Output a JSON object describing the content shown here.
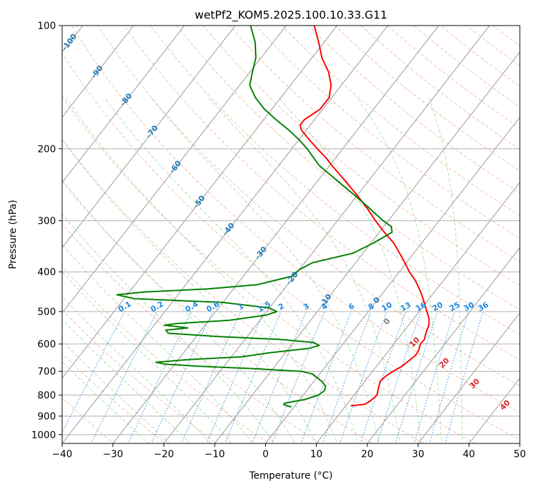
{
  "chart_data": {
    "type": "line",
    "title": "wetPf2_KOM5.2025.100.10.33.G11",
    "xlabel": "Temperature (°C)",
    "ylabel": "Pressure (hPa)",
    "xlim": [
      -40,
      50
    ],
    "ylim": [
      1050,
      100
    ],
    "y_scale": "log",
    "grid": true,
    "x_ticks": [
      -40,
      -30,
      -20,
      -10,
      0,
      10,
      20,
      30,
      40,
      50
    ],
    "x_tick_labels": [
      "−40",
      "−30",
      "−20",
      "−10",
      "0",
      "10",
      "20",
      "30",
      "40",
      "50"
    ],
    "y_ticks": [
      100,
      200,
      300,
      400,
      500,
      600,
      700,
      800,
      900,
      1000
    ],
    "y_tick_labels": [
      "100",
      "200",
      "300",
      "400",
      "500",
      "600",
      "700",
      "800",
      "900",
      "1000"
    ],
    "isotherm_labels": [
      {
        "text": "-100",
        "t": -100
      },
      {
        "text": "-90",
        "t": -90
      },
      {
        "text": "-80",
        "t": -80
      },
      {
        "text": "-70",
        "t": -70
      },
      {
        "text": "-60",
        "t": -60
      },
      {
        "text": "-50",
        "t": -50
      },
      {
        "text": "-40",
        "t": -40
      },
      {
        "text": "-30",
        "t": -30
      },
      {
        "text": "-20",
        "t": -20
      },
      {
        "text": "-10",
        "t": -10
      },
      {
        "text": "0",
        "t": 0
      }
    ],
    "mixing_ratio_labels": [
      "0.1",
      "0.2",
      "0.4",
      "0.6",
      "1",
      "1.5",
      "2",
      "3",
      "4",
      "6",
      "8",
      "10",
      "13",
      "16",
      "20",
      "25",
      "30",
      "36"
    ],
    "dry_adiabat_labels": [
      "10",
      "20",
      "30",
      "40"
    ],
    "moist_adiabat_labels": [
      "0"
    ],
    "series": [
      {
        "name": "",
        "color": "#ff0000",
        "points": [
          {
            "p": 850,
            "t": 11.0
          },
          {
            "p": 842,
            "t": 13.5
          },
          {
            "p": 830,
            "t": 14.0
          },
          {
            "p": 815,
            "t": 14.3
          },
          {
            "p": 800,
            "t": 14.5
          },
          {
            "p": 780,
            "t": 14.0
          },
          {
            "p": 760,
            "t": 13.5
          },
          {
            "p": 740,
            "t": 13.0
          },
          {
            "p": 720,
            "t": 13.3
          },
          {
            "p": 700,
            "t": 14.0
          },
          {
            "p": 680,
            "t": 15.0
          },
          {
            "p": 660,
            "t": 15.5
          },
          {
            "p": 640,
            "t": 16.0
          },
          {
            "p": 620,
            "t": 15.8
          },
          {
            "p": 600,
            "t": 15.2
          },
          {
            "p": 585,
            "t": 15.3
          },
          {
            "p": 570,
            "t": 14.8
          },
          {
            "p": 560,
            "t": 14.5
          },
          {
            "p": 540,
            "t": 14.0
          },
          {
            "p": 520,
            "t": 13.0
          },
          {
            "p": 500,
            "t": 11.5
          },
          {
            "p": 480,
            "t": 10.0
          },
          {
            "p": 450,
            "t": 7.5
          },
          {
            "p": 420,
            "t": 4.5
          },
          {
            "p": 400,
            "t": 2.0
          },
          {
            "p": 370,
            "t": -1.5
          },
          {
            "p": 340,
            "t": -5.5
          },
          {
            "p": 320,
            "t": -9.0
          },
          {
            "p": 300,
            "t": -12.5
          },
          {
            "p": 280,
            "t": -16.0
          },
          {
            "p": 260,
            "t": -20.0
          },
          {
            "p": 240,
            "t": -24.5
          },
          {
            "p": 220,
            "t": -29.5
          },
          {
            "p": 210,
            "t": -32.0
          },
          {
            "p": 200,
            "t": -35.0
          },
          {
            "p": 190,
            "t": -38.0
          },
          {
            "p": 180,
            "t": -41.0
          },
          {
            "p": 175,
            "t": -42.0
          },
          {
            "p": 170,
            "t": -42.0
          },
          {
            "p": 160,
            "t": -40.5
          },
          {
            "p": 150,
            "t": -40.5
          },
          {
            "p": 140,
            "t": -42.0
          },
          {
            "p": 130,
            "t": -44.5
          },
          {
            "p": 120,
            "t": -48.0
          },
          {
            "p": 110,
            "t": -51.0
          },
          {
            "p": 100,
            "t": -54.5
          }
        ]
      },
      {
        "name": "",
        "color": "#008000",
        "points": [
          {
            "p": 855,
            "t": -0.5
          },
          {
            "p": 850,
            "t": -1.5
          },
          {
            "p": 845,
            "t": -2.3
          },
          {
            "p": 838,
            "t": -2.5
          },
          {
            "p": 830,
            "t": -1.0
          },
          {
            "p": 820,
            "t": 1.0
          },
          {
            "p": 800,
            "t": 3.0
          },
          {
            "p": 780,
            "t": 3.5
          },
          {
            "p": 760,
            "t": 3.0
          },
          {
            "p": 740,
            "t": 1.5
          },
          {
            "p": 725,
            "t": 0.0
          },
          {
            "p": 710,
            "t": -1.5
          },
          {
            "p": 700,
            "t": -4.0
          },
          {
            "p": 690,
            "t": -13.0
          },
          {
            "p": 680,
            "t": -25.0
          },
          {
            "p": 672,
            "t": -32.0
          },
          {
            "p": 665,
            "t": -34.0
          },
          {
            "p": 655,
            "t": -28.0
          },
          {
            "p": 645,
            "t": -18.0
          },
          {
            "p": 630,
            "t": -13.0
          },
          {
            "p": 615,
            "t": -6.0
          },
          {
            "p": 605,
            "t": -4.5
          },
          {
            "p": 595,
            "t": -6.0
          },
          {
            "p": 585,
            "t": -13.0
          },
          {
            "p": 575,
            "t": -26.0
          },
          {
            "p": 565,
            "t": -36.0
          },
          {
            "p": 555,
            "t": -37.0
          },
          {
            "p": 548,
            "t": -33.0
          },
          {
            "p": 540,
            "t": -38.0
          },
          {
            "p": 535,
            "t": -36.0
          },
          {
            "p": 525,
            "t": -26.0
          },
          {
            "p": 510,
            "t": -19.5
          },
          {
            "p": 500,
            "t": -18.0
          },
          {
            "p": 490,
            "t": -20.0
          },
          {
            "p": 475,
            "t": -30.0
          },
          {
            "p": 465,
            "t": -48.0
          },
          {
            "p": 455,
            "t": -52.0
          },
          {
            "p": 448,
            "t": -47.0
          },
          {
            "p": 440,
            "t": -35.0
          },
          {
            "p": 430,
            "t": -26.0
          },
          {
            "p": 410,
            "t": -20.5
          },
          {
            "p": 395,
            "t": -20.0
          },
          {
            "p": 380,
            "t": -18.5
          },
          {
            "p": 360,
            "t": -12.0
          },
          {
            "p": 340,
            "t": -9.5
          },
          {
            "p": 320,
            "t": -7.5
          },
          {
            "p": 310,
            "t": -8.5
          },
          {
            "p": 300,
            "t": -11.0
          },
          {
            "p": 280,
            "t": -15.5
          },
          {
            "p": 260,
            "t": -20.5
          },
          {
            "p": 240,
            "t": -26.0
          },
          {
            "p": 220,
            "t": -32.0
          },
          {
            "p": 200,
            "t": -37.0
          },
          {
            "p": 190,
            "t": -40.0
          },
          {
            "p": 180,
            "t": -43.5
          },
          {
            "p": 170,
            "t": -47.5
          },
          {
            "p": 160,
            "t": -51.5
          },
          {
            "p": 150,
            "t": -55.0
          },
          {
            "p": 140,
            "t": -58.0
          },
          {
            "p": 130,
            "t": -59.5
          },
          {
            "p": 120,
            "t": -61.0
          },
          {
            "p": 110,
            "t": -63.5
          },
          {
            "p": 100,
            "t": -67.0
          }
        ]
      }
    ]
  }
}
